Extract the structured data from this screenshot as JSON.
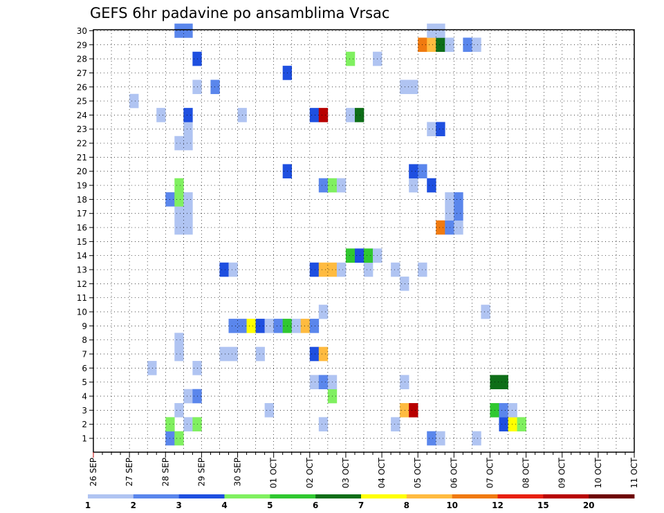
{
  "chart_data": {
    "type": "heatmap",
    "title": "GEFS 6hr padavine po ansamblima Vrsac",
    "y_categories": [
      "1",
      "2",
      "3",
      "4",
      "5",
      "6",
      "7",
      "8",
      "9",
      "10",
      "11",
      "12",
      "13",
      "14",
      "15",
      "16",
      "17",
      "18",
      "19",
      "20",
      "21",
      "22",
      "23",
      "24",
      "25",
      "26",
      "27",
      "28",
      "29",
      "30"
    ],
    "x_tick_labels": [
      "26 SEP",
      "27 SEP",
      "28 SEP",
      "29 SEP",
      "30 SEP",
      "01 OCT",
      "02 OCT",
      "03 OCT",
      "04 OCT",
      "05 OCT",
      "06 OCT",
      "07 OCT",
      "08 OCT",
      "09 OCT",
      "10 OCT",
      "11 OCT"
    ],
    "x_unit": "6-hour steps from 26 SEP 00Z",
    "colorbar": {
      "levels": [
        "1",
        "2",
        "3",
        "4",
        "5",
        "6",
        "7",
        "8",
        "10",
        "12",
        "15",
        "20"
      ],
      "colors": [
        "#b0c4f2",
        "#5a86ec",
        "#1e4fe0",
        "#80f060",
        "#30c830",
        "#0e6e18",
        "#ffff00",
        "#ffbb40",
        "#f07a10",
        "#e82010",
        "#b80000",
        "#6e0000"
      ]
    },
    "grid": true,
    "cells": [
      {
        "m": 1,
        "x": 8,
        "c": 1
      },
      {
        "m": 1,
        "x": 9,
        "c": 3
      },
      {
        "m": 1,
        "x": 37,
        "c": 1
      },
      {
        "m": 1,
        "x": 38,
        "c": 0
      },
      {
        "m": 1,
        "x": 42,
        "c": 0
      },
      {
        "m": 2,
        "x": 8,
        "c": 3
      },
      {
        "m": 2,
        "x": 10,
        "c": 0
      },
      {
        "m": 2,
        "x": 11,
        "c": 3
      },
      {
        "m": 2,
        "x": 25,
        "c": 0
      },
      {
        "m": 2,
        "x": 33,
        "c": 0
      },
      {
        "m": 2,
        "x": 45,
        "c": 2
      },
      {
        "m": 2,
        "x": 46,
        "c": 6
      },
      {
        "m": 2,
        "x": 47,
        "c": 3
      },
      {
        "m": 3,
        "x": 9,
        "c": 0
      },
      {
        "m": 3,
        "x": 19,
        "c": 0
      },
      {
        "m": 3,
        "x": 34,
        "c": 7
      },
      {
        "m": 3,
        "x": 35,
        "c": 10
      },
      {
        "m": 3,
        "x": 44,
        "c": 4
      },
      {
        "m": 3,
        "x": 45,
        "c": 1
      },
      {
        "m": 3,
        "x": 46,
        "c": 0
      },
      {
        "m": 4,
        "x": 10,
        "c": 0
      },
      {
        "m": 4,
        "x": 11,
        "c": 1
      },
      {
        "m": 4,
        "x": 26,
        "c": 3
      },
      {
        "m": 5,
        "x": 24,
        "c": 0
      },
      {
        "m": 5,
        "x": 25,
        "c": 1
      },
      {
        "m": 5,
        "x": 26,
        "c": 0
      },
      {
        "m": 5,
        "x": 34,
        "c": 0
      },
      {
        "m": 5,
        "x": 44,
        "c": 5
      },
      {
        "m": 5,
        "x": 45,
        "c": 5
      },
      {
        "m": 6,
        "x": 6,
        "c": 0
      },
      {
        "m": 6,
        "x": 11,
        "c": 0
      },
      {
        "m": 7,
        "x": 9,
        "c": 0
      },
      {
        "m": 7,
        "x": 14,
        "c": 0
      },
      {
        "m": 7,
        "x": 15,
        "c": 0
      },
      {
        "m": 7,
        "x": 18,
        "c": 0
      },
      {
        "m": 7,
        "x": 24,
        "c": 2
      },
      {
        "m": 7,
        "x": 25,
        "c": 7
      },
      {
        "m": 8,
        "x": 9,
        "c": 0
      },
      {
        "m": 9,
        "x": 15,
        "c": 1
      },
      {
        "m": 9,
        "x": 16,
        "c": 1
      },
      {
        "m": 9,
        "x": 17,
        "c": 6
      },
      {
        "m": 9,
        "x": 18,
        "c": 2
      },
      {
        "m": 9,
        "x": 19,
        "c": 0
      },
      {
        "m": 9,
        "x": 20,
        "c": 1
      },
      {
        "m": 9,
        "x": 21,
        "c": 4
      },
      {
        "m": 9,
        "x": 22,
        "c": 0
      },
      {
        "m": 9,
        "x": 23,
        "c": 7
      },
      {
        "m": 9,
        "x": 24,
        "c": 1
      },
      {
        "m": 10,
        "x": 25,
        "c": 0
      },
      {
        "m": 10,
        "x": 43,
        "c": 0
      },
      {
        "m": 12,
        "x": 34,
        "c": 0
      },
      {
        "m": 13,
        "x": 14,
        "c": 2
      },
      {
        "m": 13,
        "x": 15,
        "c": 0
      },
      {
        "m": 13,
        "x": 24,
        "c": 2
      },
      {
        "m": 13,
        "x": 25,
        "c": 7
      },
      {
        "m": 13,
        "x": 26,
        "c": 7
      },
      {
        "m": 13,
        "x": 27,
        "c": 0
      },
      {
        "m": 13,
        "x": 30,
        "c": 0
      },
      {
        "m": 13,
        "x": 33,
        "c": 0
      },
      {
        "m": 13,
        "x": 36,
        "c": 0
      },
      {
        "m": 14,
        "x": 28,
        "c": 4
      },
      {
        "m": 14,
        "x": 29,
        "c": 2
      },
      {
        "m": 14,
        "x": 30,
        "c": 4
      },
      {
        "m": 14,
        "x": 31,
        "c": 0
      },
      {
        "m": 16,
        "x": 9,
        "c": 0
      },
      {
        "m": 16,
        "x": 10,
        "c": 0
      },
      {
        "m": 16,
        "x": 38,
        "c": 8
      },
      {
        "m": 16,
        "x": 39,
        "c": 1
      },
      {
        "m": 16,
        "x": 40,
        "c": 0
      },
      {
        "m": 17,
        "x": 9,
        "c": 0
      },
      {
        "m": 17,
        "x": 10,
        "c": 0
      },
      {
        "m": 17,
        "x": 39,
        "c": 0
      },
      {
        "m": 17,
        "x": 40,
        "c": 1
      },
      {
        "m": 18,
        "x": 8,
        "c": 1
      },
      {
        "m": 18,
        "x": 9,
        "c": 3
      },
      {
        "m": 18,
        "x": 10,
        "c": 0
      },
      {
        "m": 18,
        "x": 39,
        "c": 0
      },
      {
        "m": 18,
        "x": 40,
        "c": 1
      },
      {
        "m": 19,
        "x": 9,
        "c": 3
      },
      {
        "m": 19,
        "x": 25,
        "c": 1
      },
      {
        "m": 19,
        "x": 26,
        "c": 3
      },
      {
        "m": 19,
        "x": 27,
        "c": 0
      },
      {
        "m": 19,
        "x": 35,
        "c": 0
      },
      {
        "m": 19,
        "x": 37,
        "c": 2
      },
      {
        "m": 20,
        "x": 21,
        "c": 2
      },
      {
        "m": 20,
        "x": 35,
        "c": 2
      },
      {
        "m": 20,
        "x": 36,
        "c": 1
      },
      {
        "m": 22,
        "x": 9,
        "c": 0
      },
      {
        "m": 22,
        "x": 10,
        "c": 0
      },
      {
        "m": 23,
        "x": 10,
        "c": 0
      },
      {
        "m": 23,
        "x": 37,
        "c": 0
      },
      {
        "m": 23,
        "x": 38,
        "c": 2
      },
      {
        "m": 24,
        "x": 7,
        "c": 0
      },
      {
        "m": 24,
        "x": 10,
        "c": 2
      },
      {
        "m": 24,
        "x": 16,
        "c": 0
      },
      {
        "m": 24,
        "x": 24,
        "c": 2
      },
      {
        "m": 24,
        "x": 25,
        "c": 10
      },
      {
        "m": 24,
        "x": 28,
        "c": 0
      },
      {
        "m": 24,
        "x": 29,
        "c": 5
      },
      {
        "m": 25,
        "x": 4,
        "c": 0
      },
      {
        "m": 26,
        "x": 11,
        "c": 0
      },
      {
        "m": 26,
        "x": 13,
        "c": 1
      },
      {
        "m": 26,
        "x": 34,
        "c": 0
      },
      {
        "m": 26,
        "x": 35,
        "c": 0
      },
      {
        "m": 27,
        "x": 21,
        "c": 2
      },
      {
        "m": 28,
        "x": 11,
        "c": 2
      },
      {
        "m": 28,
        "x": 28,
        "c": 3
      },
      {
        "m": 28,
        "x": 31,
        "c": 0
      },
      {
        "m": 29,
        "x": 36,
        "c": 8
      },
      {
        "m": 29,
        "x": 37,
        "c": 7
      },
      {
        "m": 29,
        "x": 38,
        "c": 5
      },
      {
        "m": 29,
        "x": 39,
        "c": 0
      },
      {
        "m": 29,
        "x": 41,
        "c": 1
      },
      {
        "m": 29,
        "x": 42,
        "c": 0
      },
      {
        "m": 30,
        "x": 9,
        "c": 1
      },
      {
        "m": 30,
        "x": 10,
        "c": 1
      },
      {
        "m": 30,
        "x": 37,
        "c": 0
      },
      {
        "m": 30,
        "x": 38,
        "c": 0
      }
    ]
  }
}
